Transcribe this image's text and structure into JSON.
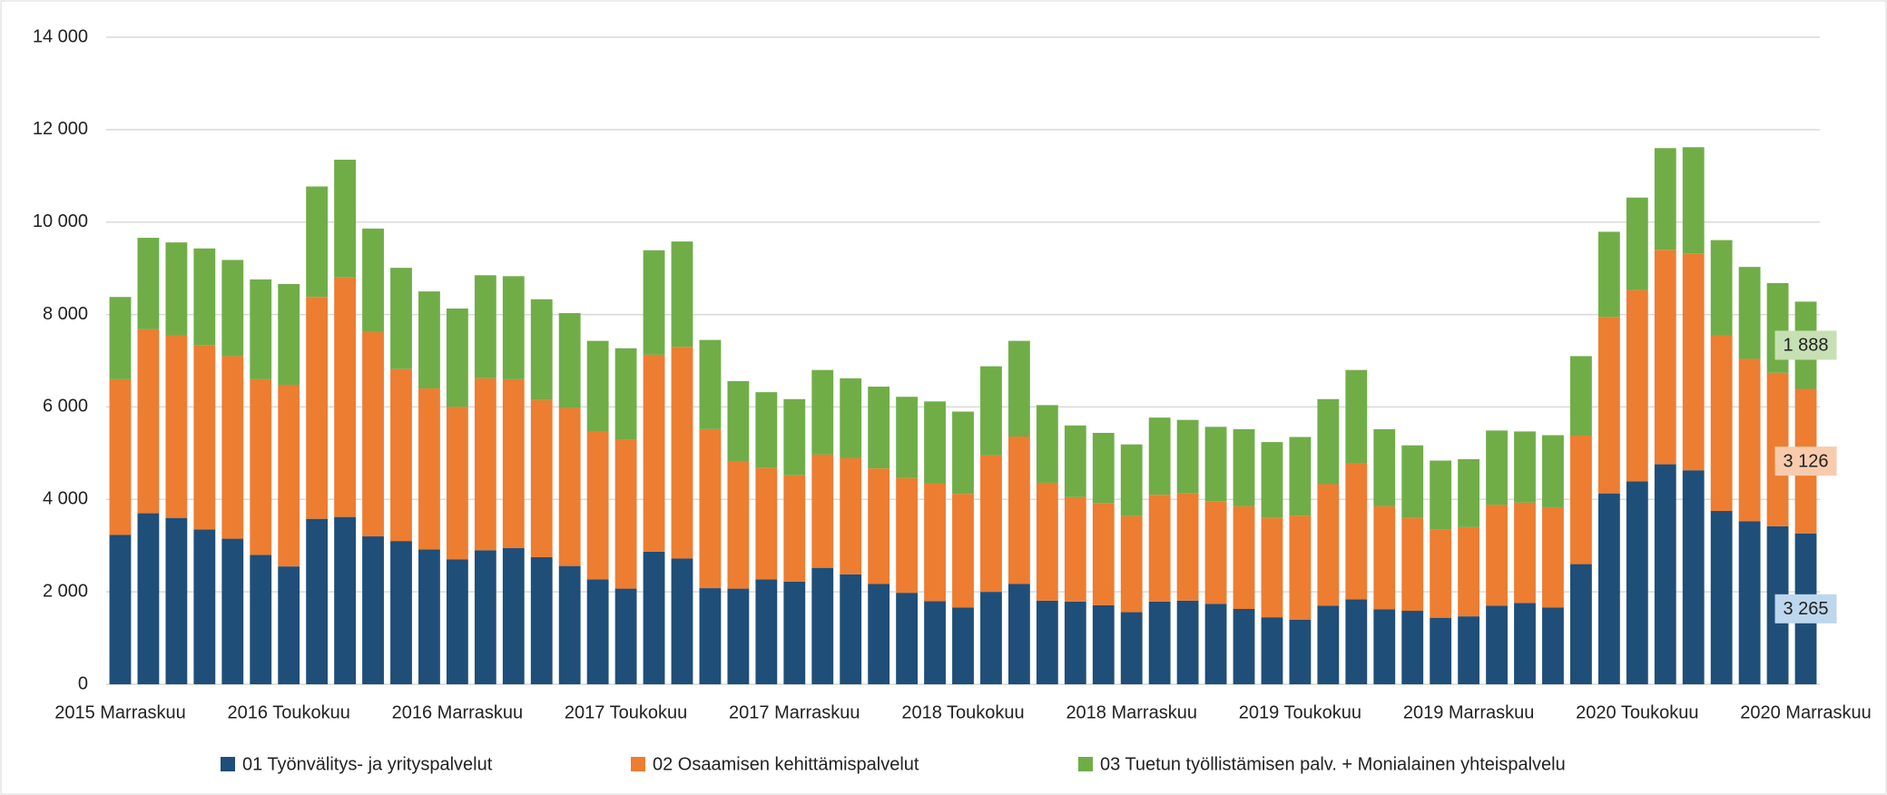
{
  "chart_data": {
    "type": "stacked-bar",
    "categories": [
      "2015 Marraskuu",
      null,
      null,
      null,
      null,
      null,
      "2016 Toukokuu",
      null,
      null,
      null,
      null,
      null,
      "2016 Marraskuu",
      null,
      null,
      null,
      null,
      null,
      "2017 Toukokuu",
      null,
      null,
      null,
      null,
      null,
      "2017 Marraskuu",
      null,
      null,
      null,
      null,
      null,
      "2018 Toukokuu",
      null,
      null,
      null,
      null,
      null,
      "2018 Marraskuu",
      null,
      null,
      null,
      null,
      null,
      "2019 Toukokuu",
      null,
      null,
      null,
      null,
      null,
      "2019 Marraskuu",
      null,
      null,
      null,
      null,
      null,
      "2020 Toukokuu",
      null,
      null,
      null,
      null,
      null,
      "2020 Marraskuu"
    ],
    "series": [
      {
        "name": "01 Työnvälitys- ja yrityspalvelut",
        "color": "#1f4e79",
        "values": [
          3230,
          3700,
          3600,
          3350,
          3150,
          2800,
          2550,
          3580,
          3620,
          3200,
          3100,
          2920,
          2700,
          2900,
          2950,
          2750,
          2560,
          2270,
          2070,
          2870,
          2720,
          2080,
          2070,
          2270,
          2220,
          2520,
          2380,
          2170,
          1980,
          1800,
          1660,
          2000,
          2170,
          1810,
          1790,
          1710,
          1560,
          1790,
          1810,
          1740,
          1630,
          1450,
          1400,
          1700,
          1840,
          1620,
          1590,
          1440,
          1470,
          1700,
          1760,
          1660,
          2600,
          4130,
          4390,
          4760,
          4630,
          3750,
          3530,
          3420,
          3265
        ],
        "value_labels": [
          null,
          null,
          null,
          null,
          null,
          null,
          null,
          null,
          null,
          null,
          null,
          null,
          null,
          null,
          null,
          null,
          null,
          null,
          null,
          null,
          null,
          null,
          null,
          null,
          null,
          null,
          null,
          null,
          null,
          null,
          null,
          null,
          null,
          null,
          null,
          null,
          null,
          null,
          null,
          null,
          null,
          null,
          null,
          null,
          null,
          null,
          null,
          null,
          null,
          null,
          null,
          null,
          null,
          null,
          null,
          null,
          null,
          null,
          null,
          null,
          "3 265"
        ],
        "label_color": "#bdd7ee"
      },
      {
        "name": "02 Osaamisen kehittämispalvelut",
        "color": "#ed7d31",
        "values": [
          3370,
          3980,
          3950,
          3980,
          3950,
          3800,
          3930,
          4800,
          5180,
          4420,
          3720,
          3480,
          3300,
          3720,
          3650,
          3400,
          3420,
          3190,
          3230,
          4260,
          4580,
          3440,
          2760,
          2410,
          2300,
          2450,
          2510,
          2500,
          2480,
          2540,
          2460,
          2950,
          3190,
          2550,
          2260,
          2210,
          2080,
          2310,
          2320,
          2220,
          2220,
          2150,
          2250,
          2630,
          2940,
          2230,
          2010,
          1910,
          1930,
          2180,
          2170,
          2170,
          2780,
          3820,
          4140,
          4640,
          4690,
          3800,
          3510,
          3320,
          3126
        ],
        "value_labels": [
          null,
          null,
          null,
          null,
          null,
          null,
          null,
          null,
          null,
          null,
          null,
          null,
          null,
          null,
          null,
          null,
          null,
          null,
          null,
          null,
          null,
          null,
          null,
          null,
          null,
          null,
          null,
          null,
          null,
          null,
          null,
          null,
          null,
          null,
          null,
          null,
          null,
          null,
          null,
          null,
          null,
          null,
          null,
          null,
          null,
          null,
          null,
          null,
          null,
          null,
          null,
          null,
          null,
          null,
          null,
          null,
          null,
          null,
          null,
          null,
          "3 126"
        ],
        "label_color": "#f8cbad"
      },
      {
        "name": "03 Tuetun työllistämisen palv. + Monialainen yhteispalvelu",
        "color": "#70ad47",
        "values": [
          1780,
          1980,
          2010,
          2100,
          2080,
          2160,
          2180,
          2390,
          2550,
          2240,
          2190,
          2100,
          2130,
          2230,
          2230,
          2180,
          2050,
          1970,
          1970,
          2260,
          2280,
          1930,
          1730,
          1640,
          1650,
          1830,
          1730,
          1770,
          1760,
          1780,
          1780,
          1930,
          2070,
          1680,
          1550,
          1520,
          1550,
          1670,
          1590,
          1610,
          1670,
          1640,
          1700,
          1840,
          2020,
          1670,
          1570,
          1490,
          1470,
          1610,
          1540,
          1560,
          1720,
          1840,
          2000,
          2200,
          2300,
          2060,
          1990,
          1940,
          1888
        ],
        "value_labels": [
          null,
          null,
          null,
          null,
          null,
          null,
          null,
          null,
          null,
          null,
          null,
          null,
          null,
          null,
          null,
          null,
          null,
          null,
          null,
          null,
          null,
          null,
          null,
          null,
          null,
          null,
          null,
          null,
          null,
          null,
          null,
          null,
          null,
          null,
          null,
          null,
          null,
          null,
          null,
          null,
          null,
          null,
          null,
          null,
          null,
          null,
          null,
          null,
          null,
          null,
          null,
          null,
          null,
          null,
          null,
          null,
          null,
          null,
          null,
          null,
          "1 888"
        ],
        "label_color": "#c6e0b4"
      }
    ],
    "ylim": [
      0,
      14000
    ],
    "yticks": [
      0,
      {
        "value": 2000,
        "label": "2 000"
      },
      {
        "value": 4000,
        "label": "4 000"
      },
      {
        "value": 6000,
        "label": "6 000"
      },
      {
        "value": 8000,
        "label": "8 000"
      },
      {
        "value": 10000,
        "label": "10 000"
      },
      {
        "value": 12000,
        "label": "12 000"
      },
      {
        "value": 14000,
        "label": "14 000"
      }
    ],
    "grid": true,
    "legend": "bottom"
  }
}
